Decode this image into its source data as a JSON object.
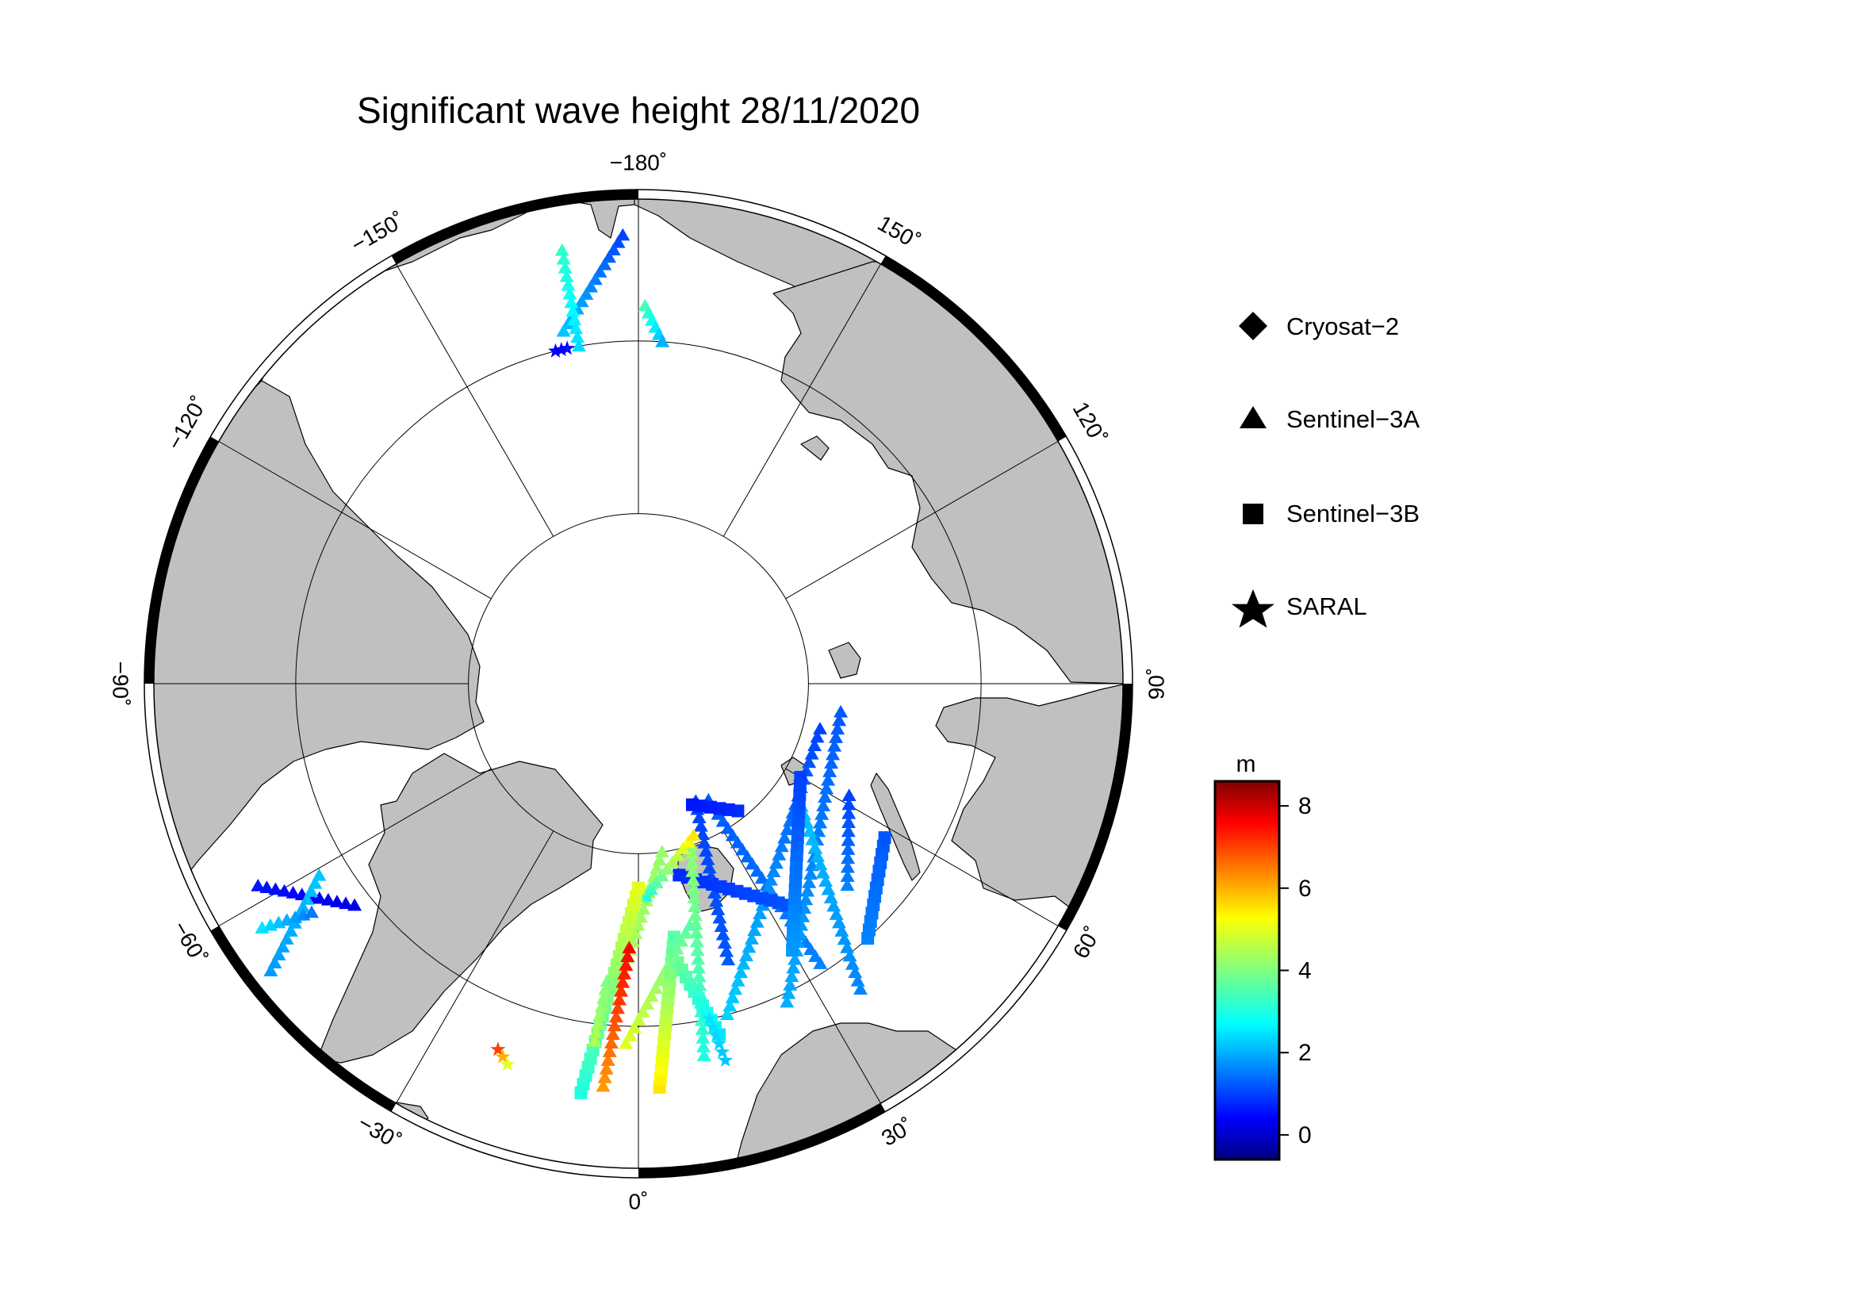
{
  "title": "Significant wave height 28/11/2020",
  "map": {
    "projection": "north polar stereographic",
    "lat_circles_deg": [
      70,
      80
    ],
    "meridians_deg": [
      0,
      30,
      60,
      90,
      120,
      150,
      180,
      -150,
      -120,
      -90,
      -60,
      -30
    ],
    "longitude_labels": [
      {
        "id": "lon-m180",
        "text": "−180˚",
        "lon": 180
      },
      {
        "id": "lon-150",
        "text": "150˚",
        "lon": 150
      },
      {
        "id": "lon-120",
        "text": "120˚",
        "lon": 120
      },
      {
        "id": "lon-90",
        "text": "90˚",
        "lon": 90
      },
      {
        "id": "lon-60",
        "text": "60˚",
        "lon": 60
      },
      {
        "id": "lon-30",
        "text": "30˚",
        "lon": 30
      },
      {
        "id": "lon-0",
        "text": "0˚",
        "lon": 0
      },
      {
        "id": "lon-m30",
        "text": "−30˚",
        "lon": -30
      },
      {
        "id": "lon-m60",
        "text": "−60˚",
        "lon": -60
      },
      {
        "id": "lon-m90",
        "text": "−90˚",
        "lon": -90
      },
      {
        "id": "lon-m120",
        "text": "−120˚",
        "lon": -120
      },
      {
        "id": "lon-m150",
        "text": "−150˚",
        "lon": -150
      }
    ],
    "land_color": "#c0c0c0",
    "ocean_color": "#ffffff"
  },
  "legend": {
    "items": [
      {
        "label": "Cryosat−2",
        "symbol": "diamond"
      },
      {
        "label": "Sentinel−3A",
        "symbol": "triangle"
      },
      {
        "label": "Sentinel−3B",
        "symbol": "square"
      },
      {
        "label": "SARAL",
        "symbol": "star"
      }
    ]
  },
  "colorbar": {
    "unit": "m",
    "min": -0.6,
    "max": 8.6,
    "ticks": [
      0,
      2,
      4,
      6,
      8
    ],
    "colormap": "jet"
  },
  "tracks": [
    {
      "satellite": "Sentinel-3A",
      "symbol": "triangle",
      "start": {
        "lat": 73,
        "lon": 18
      },
      "end": {
        "lat": 82.3,
        "lon": 26
      },
      "swh_start": 1.2,
      "swh_end": 1.0
    },
    {
      "satellite": "Sentinel-3A",
      "symbol": "triangle",
      "start": {
        "lat": 70.5,
        "lon": 33
      },
      "end": {
        "lat": 82,
        "lon": 31
      },
      "swh_start": 1.6,
      "swh_end": 1.2
    },
    {
      "satellite": "Sentinel-3A",
      "symbol": "triangle",
      "start": {
        "lat": 70,
        "lon": 15
      },
      "end": {
        "lat": 79,
        "lon": 76
      },
      "swh_start": 2.3,
      "swh_end": 1.0
    },
    {
      "satellite": "Sentinel-3A",
      "symbol": "triangle",
      "start": {
        "lat": 69.5,
        "lon": 25
      },
      "end": {
        "lat": 78,
        "lon": 82
      },
      "swh_start": 2.0,
      "swh_end": 1.2
    },
    {
      "satellite": "Sentinel-3A",
      "symbol": "triangle",
      "start": {
        "lat": 68,
        "lon": 36
      },
      "end": {
        "lat": 78,
        "lon": 53
      },
      "swh_start": 1.6,
      "swh_end": 2.2
    },
    {
      "satellite": "Sentinel-3A",
      "symbol": "triangle",
      "start": {
        "lat": 73,
        "lon": 46
      },
      "end": {
        "lat": 76,
        "lon": 62
      },
      "swh_start": 1.6,
      "swh_end": 1.0
    },
    {
      "satellite": "Sentinel-3B",
      "symbol": "square",
      "start": {
        "lat": 74,
        "lon": 35
      },
      "end": {
        "lat": 78.5,
        "lon": 12
      },
      "swh_start": 1.2,
      "swh_end": 0.8
    },
    {
      "satellite": "Sentinel-3B",
      "symbol": "square",
      "start": {
        "lat": 72,
        "lon": 30
      },
      "end": {
        "lat": 79,
        "lon": 60
      },
      "swh_start": 1.8,
      "swh_end": 1.0
    },
    {
      "satellite": "Sentinel-3B",
      "symbol": "square",
      "start": {
        "lat": 70,
        "lon": 42
      },
      "end": {
        "lat": 73,
        "lon": 58
      },
      "swh_start": 1.6,
      "swh_end": 1.2
    },
    {
      "satellite": "Sentinel-3B",
      "symbol": "square",
      "start": {
        "lat": 80.5,
        "lon": 38
      },
      "end": {
        "lat": 82.2,
        "lon": 24
      },
      "swh_start": 0.8,
      "swh_end": 0.6
    },
    {
      "satellite": "Sentinel-3A",
      "symbol": "triangle",
      "start": {
        "lat": 68,
        "lon": 10
      },
      "end": {
        "lat": 80,
        "lon": 18
      },
      "swh_start": 3.0,
      "swh_end": 4.2
    },
    {
      "satellite": "Sentinel-3A",
      "symbol": "triangle",
      "start": {
        "lat": 72,
        "lon": -4
      },
      "end": {
        "lat": 80,
        "lon": 8
      },
      "swh_start": 4.5,
      "swh_end": 4.2
    },
    {
      "satellite": "Sentinel-3A",
      "symbol": "triangle",
      "start": {
        "lat": 77.5,
        "lon": 2
      },
      "end": {
        "lat": 80.5,
        "lon": 20
      },
      "swh_start": 3.0,
      "swh_end": 5.5
    },
    {
      "satellite": "Sentinel-3A",
      "symbol": "triangle",
      "start": {
        "lat": 69,
        "lon": -2
      },
      "end": {
        "lat": 75.5,
        "lon": 12
      },
      "swh_start": 5.0,
      "swh_end": 3.6
    },
    {
      "satellite": "Sentinel-3B",
      "symbol": "square",
      "start": {
        "lat": 66,
        "lon": -8
      },
      "end": {
        "lat": 78,
        "lon": 0
      },
      "swh_start": 3.0,
      "swh_end": 5.0
    },
    {
      "satellite": "Sentinel-3B",
      "symbol": "square",
      "start": {
        "lat": 66.5,
        "lon": 3
      },
      "end": {
        "lat": 75,
        "lon": 8
      },
      "swh_start": 5.5,
      "swh_end": 3.6
    },
    {
      "satellite": "Sentinel-3A",
      "symbol": "triangle",
      "start": {
        "lat": 66.5,
        "lon": -5
      },
      "end": {
        "lat": 74.5,
        "lon": -2
      },
      "swh_start": 6.2,
      "swh_end": 7.6
    },
    {
      "satellite": "Sentinel-3A",
      "symbol": "triangle",
      "start": {
        "lat": 69,
        "lon": -7
      },
      "end": {
        "lat": 72.5,
        "lon": -6
      },
      "swh_start": 4.5,
      "swh_end": 4.0
    },
    {
      "satellite": "Sentinel-3B",
      "symbol": "square",
      "start": {
        "lat": 73.5,
        "lon": 8
      },
      "end": {
        "lat": 69,
        "lon": 13
      },
      "swh_start": 3.8,
      "swh_end": 2.5
    },
    {
      "satellite": "SARAL",
      "symbol": "star",
      "start": {
        "lat": 70,
        "lon": 12
      },
      "end": {
        "lat": 67.5,
        "lon": 13
      },
      "swh_start": 2.5,
      "swh_end": 2.2
    },
    {
      "satellite": "SARAL",
      "symbol": "star",
      "start": {
        "lat": 67.2,
        "lon": -21
      },
      "end": {
        "lat": 66.6,
        "lon": -19
      },
      "swh_start": 7.0,
      "swh_end": 5.0
    },
    {
      "satellite": "Sentinel-3A",
      "symbol": "triangle",
      "start": {
        "lat": 65,
        "lon": -62
      },
      "end": {
        "lat": 69,
        "lon": -52
      },
      "swh_start": 0.6,
      "swh_end": 0.2
    },
    {
      "satellite": "Sentinel-3A",
      "symbol": "triangle",
      "start": {
        "lat": 63,
        "lon": -52
      },
      "end": {
        "lat": 68.3,
        "lon": -59
      },
      "swh_start": 1.8,
      "swh_end": 2.2
    },
    {
      "satellite": "Sentinel-3A",
      "symbol": "triangle",
      "start": {
        "lat": 64,
        "lon": -57
      },
      "end": {
        "lat": 66.8,
        "lon": -55
      },
      "swh_start": 2.5,
      "swh_end": 1.5
    },
    {
      "satellite": "Sentinel-3A",
      "symbol": "triangle",
      "start": {
        "lat": 64,
        "lon": -178
      },
      "end": {
        "lat": 69,
        "lon": -168
      },
      "swh_start": 1.0,
      "swh_end": 2.2
    },
    {
      "satellite": "Sentinel-3A",
      "symbol": "triangle",
      "start": {
        "lat": 64.5,
        "lon": -170
      },
      "end": {
        "lat": 70,
        "lon": -170
      },
      "swh_start": 3.2,
      "swh_end": 2.4
    },
    {
      "satellite": "Sentinel-3A",
      "symbol": "triangle",
      "start": {
        "lat": 68,
        "lon": 179
      },
      "end": {
        "lat": 70,
        "lon": 176
      },
      "swh_start": 3.4,
      "swh_end": 2.0
    },
    {
      "satellite": "SARAL",
      "symbol": "star",
      "start": {
        "lat": 70,
        "lon": -168
      },
      "end": {
        "lat": 70,
        "lon": -166
      },
      "swh_start": 0.5,
      "swh_end": 0.4
    }
  ]
}
